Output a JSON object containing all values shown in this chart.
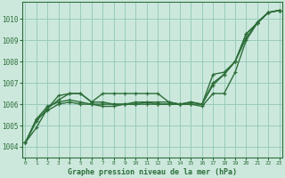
{
  "title": "Graphe pression niveau de la mer (hPa)",
  "background_color": "#cce8dc",
  "grid_color": "#99ccbb",
  "line_color": "#2d6e3a",
  "x_ticks": [
    0,
    1,
    2,
    3,
    4,
    5,
    6,
    7,
    8,
    9,
    10,
    11,
    12,
    13,
    14,
    15,
    16,
    17,
    18,
    19,
    20,
    21,
    22,
    23
  ],
  "ylim": [
    1003.5,
    1010.8
  ],
  "y_ticks": [
    1004,
    1005,
    1006,
    1007,
    1008,
    1009,
    1010
  ],
  "series": [
    [
      1004.2,
      1004.9,
      1005.8,
      1006.4,
      1006.5,
      1006.5,
      1006.1,
      1006.5,
      1006.5,
      1006.5,
      1006.5,
      1006.5,
      1006.5,
      1006.1,
      1006.0,
      1006.1,
      1006.0,
      1007.4,
      1007.5,
      1008.0,
      1009.1,
      1009.85,
      1010.3,
      1010.4
    ],
    [
      1004.2,
      1005.2,
      1005.8,
      1006.2,
      1006.5,
      1006.5,
      1006.1,
      1006.1,
      1006.0,
      1006.0,
      1006.1,
      1006.1,
      1006.1,
      1006.1,
      1006.0,
      1006.1,
      1006.0,
      1007.0,
      1007.4,
      1008.0,
      1009.3,
      1009.8,
      1010.3,
      1010.4
    ],
    [
      1004.2,
      1005.3,
      1005.9,
      1006.1,
      1006.2,
      1006.1,
      1006.0,
      1006.0,
      1006.0,
      1006.0,
      1006.0,
      1006.1,
      1006.0,
      1006.0,
      1006.0,
      1006.0,
      1006.0,
      1006.9,
      1007.4,
      1008.0,
      1009.3,
      1009.8,
      1010.3,
      1010.4
    ],
    [
      1004.2,
      1005.3,
      1005.7,
      1006.0,
      1006.1,
      1006.0,
      1006.0,
      1005.9,
      1005.9,
      1006.0,
      1006.0,
      1006.0,
      1006.0,
      1006.0,
      1006.0,
      1006.0,
      1005.9,
      1006.5,
      1006.5,
      1007.5,
      1009.0,
      1009.8,
      1010.3,
      1010.4
    ]
  ],
  "linewidth": 1.0,
  "markersize": 3.5,
  "figsize": [
    3.2,
    2.0
  ],
  "dpi": 100
}
